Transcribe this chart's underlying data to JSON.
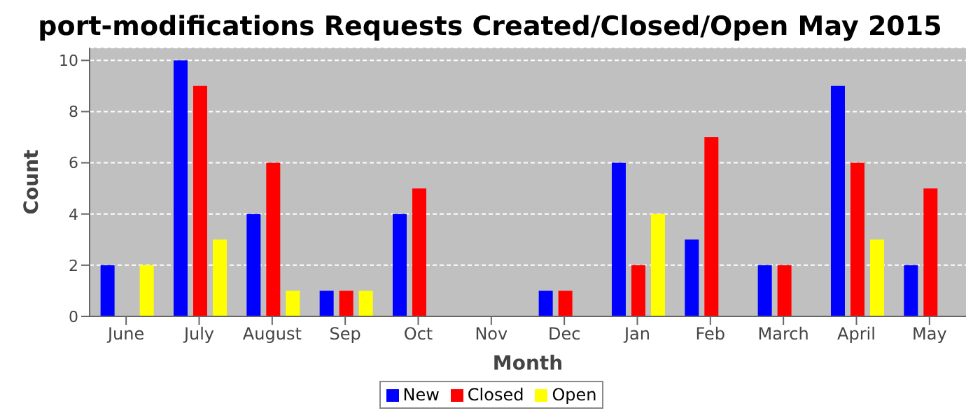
{
  "chart_data": {
    "type": "bar",
    "title": "port-modifications Requests Created/Closed/Open May 2015",
    "xlabel": "Month",
    "ylabel": "Count",
    "categories": [
      "June",
      "July",
      "August",
      "Sep",
      "Oct",
      "Nov",
      "Dec",
      "Jan",
      "Feb",
      "March",
      "April",
      "May"
    ],
    "series": [
      {
        "name": "New",
        "color": "#0000ff",
        "values": [
          2,
          10,
          4,
          1,
          4,
          0,
          1,
          6,
          3,
          2,
          9,
          2
        ]
      },
      {
        "name": "Closed",
        "color": "#ff0000",
        "values": [
          0,
          9,
          6,
          1,
          5,
          0,
          1,
          2,
          7,
          2,
          6,
          5
        ]
      },
      {
        "name": "Open",
        "color": "#ffff00",
        "values": [
          2,
          3,
          1,
          1,
          0,
          0,
          0,
          4,
          0,
          0,
          3,
          0
        ]
      }
    ],
    "ylim": [
      0,
      10.5
    ],
    "yticks": [
      0,
      2,
      4,
      6,
      8,
      10
    ],
    "grid": "y",
    "legend": "bottom"
  }
}
